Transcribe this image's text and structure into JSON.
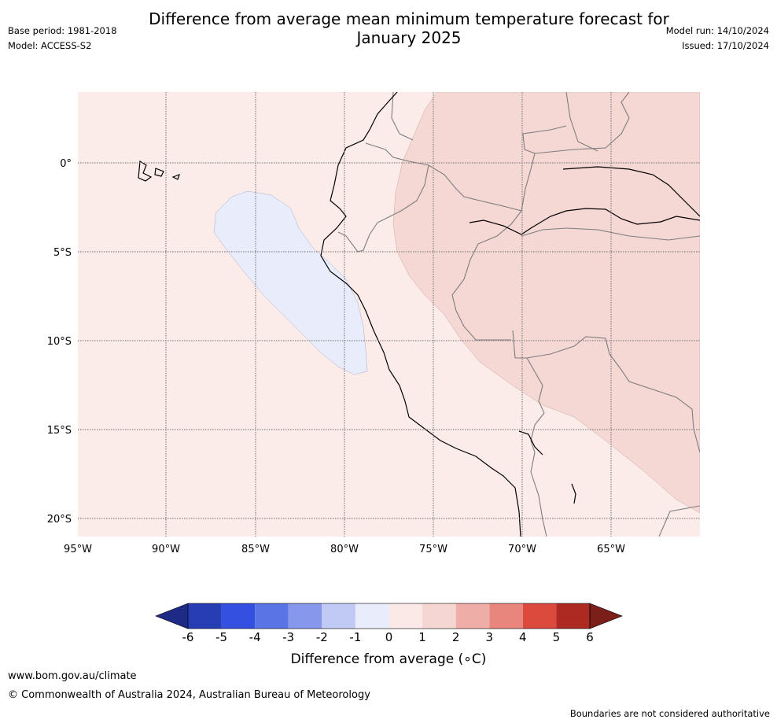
{
  "header": {
    "title_line1": "Difference from average mean minimum temperature forecast for",
    "title_line2": "January 2025",
    "base_period": "Base period: 1981-2018",
    "model": "Model: ACCESS-S2",
    "model_run": "Model run: 14/10/2024",
    "issued": "Issued: 17/10/2024"
  },
  "map": {
    "lat_labels": [
      "0°",
      "5°S",
      "10°S",
      "15°S",
      "20°S"
    ],
    "lon_labels": [
      "95°W",
      "90°W",
      "85°W",
      "80°W",
      "75°W",
      "70°W",
      "65°W"
    ]
  },
  "colorbar": {
    "title": "Difference from average (∘C)",
    "ticks": [
      "-6",
      "-5",
      "-4",
      "-3",
      "-2",
      "-1",
      "0",
      "1",
      "2",
      "3",
      "4",
      "5",
      "6"
    ],
    "colors": [
      "#1f2a87",
      "#263db3",
      "#3350e0",
      "#5a74e6",
      "#8797ec",
      "#c1c9f5",
      "#e9ecfb",
      "#fbe9e8",
      "#f6d6d3",
      "#efada8",
      "#e8867e",
      "#db4a3d",
      "#ac2a22",
      "#7a1f19"
    ]
  },
  "footer": {
    "url": "www.bom.gov.au/climate",
    "copyright": "© Commonwealth of Australia 2024, Australian Bureau of Meteorology",
    "note": "Boundaries are not considered authoritative"
  }
}
